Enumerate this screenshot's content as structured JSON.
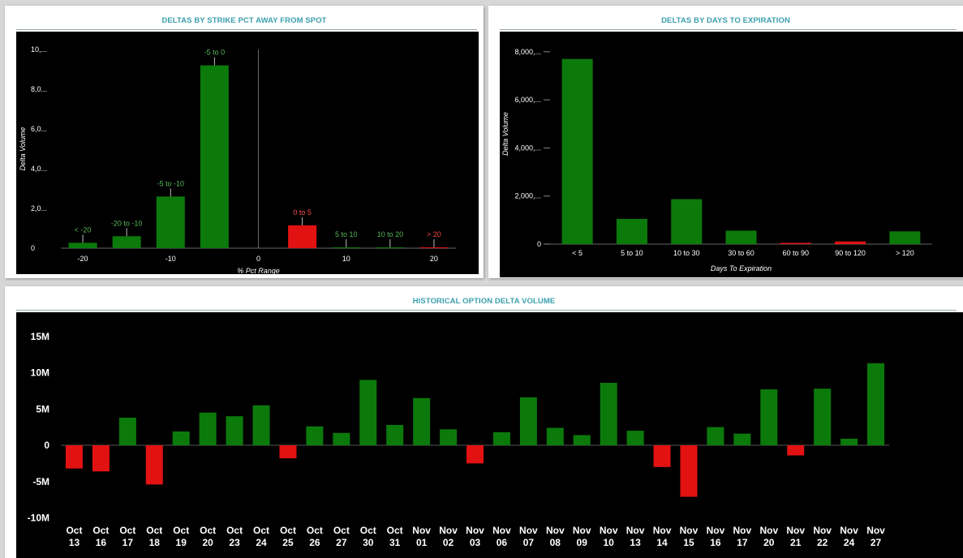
{
  "panels": {
    "strike": {
      "title": "DELTAS BY STRIKE PCT AWAY FROM SPOT"
    },
    "days": {
      "title": "DELTAS BY DAYS TO EXPIRATION"
    },
    "history": {
      "title": "HISTORICAL OPTION DELTA VOLUME"
    }
  },
  "colors": {
    "positive": "#0b7a0b",
    "negative": "#e31212",
    "positive_label": "#59b859",
    "negative_label": "#ff4a4a",
    "title": "#3aa0ad",
    "plot_bg": "#000000"
  },
  "chart_data": [
    {
      "id": "strike",
      "type": "bar",
      "title": "DELTAS BY STRIKE PCT AWAY FROM SPOT",
      "xlabel": "% Pct Range",
      "ylabel": "Delta Volume",
      "xlim": [
        -22.5,
        22.5
      ],
      "ylim": [
        0,
        10000
      ],
      "x_ticks": [
        "-20",
        "-10",
        "0",
        "10",
        "20"
      ],
      "x_tick_values": [
        -20,
        -10,
        0,
        10,
        20
      ],
      "y_ticks": [
        "0",
        "2,0...",
        "4,0...",
        "6,0...",
        "8,0...",
        "10,..."
      ],
      "y_tick_values": [
        0,
        2000,
        4000,
        6000,
        8000,
        10000
      ],
      "bars": [
        {
          "label": "< -20",
          "x": -20,
          "value": 270
        },
        {
          "label": "-20 to -10",
          "x": -15,
          "value": 600
        },
        {
          "label": "-5 to -10",
          "x": -10,
          "value": 2600
        },
        {
          "label": "-5 to 0",
          "x": -5,
          "value": 9200
        },
        {
          "label": "0 to 5",
          "x": 5,
          "value": 1150,
          "negative": true
        },
        {
          "label": "5 to 10",
          "x": 10,
          "value": 30
        },
        {
          "label": "10 to 20",
          "x": 15,
          "value": 30
        },
        {
          "label": "> 20",
          "x": 20,
          "value": 20,
          "negative": true
        }
      ],
      "grid": false
    },
    {
      "id": "days",
      "type": "bar",
      "title": "DELTAS BY DAYS TO EXPIRATION",
      "xlabel": "Days To Expiration",
      "ylabel": "Delta Volume",
      "ylim": [
        0,
        8500
      ],
      "y_ticks": [
        "0",
        "2,000,...",
        "4,000,...",
        "6,000,...",
        "8,000,..."
      ],
      "y_tick_values": [
        0,
        2000,
        4000,
        6000,
        8000
      ],
      "categories": [
        "< 5",
        "5 to 10",
        "10 to 30",
        "30 to 60",
        "60 to 90",
        "90 to 120",
        "> 120"
      ],
      "values": [
        7700,
        1050,
        1870,
        560,
        40,
        110,
        530
      ],
      "negative": [
        false,
        false,
        false,
        false,
        true,
        true,
        false
      ],
      "grid": false
    },
    {
      "id": "history",
      "type": "bar",
      "title": "HISTORICAL OPTION DELTA VOLUME",
      "ylim": [
        -10,
        17
      ],
      "y_ticks": [
        "-10M",
        "-5M",
        "0",
        "5M",
        "10M",
        "15M"
      ],
      "y_tick_values": [
        -10,
        -5,
        0,
        5,
        10,
        15
      ],
      "unit": "M",
      "categories": [
        [
          "Oct",
          "13"
        ],
        [
          "Oct",
          "16"
        ],
        [
          "Oct",
          "17"
        ],
        [
          "Oct",
          "18"
        ],
        [
          "Oct",
          "19"
        ],
        [
          "Oct",
          "20"
        ],
        [
          "Oct",
          "23"
        ],
        [
          "Oct",
          "24"
        ],
        [
          "Oct",
          "25"
        ],
        [
          "Oct",
          "26"
        ],
        [
          "Oct",
          "27"
        ],
        [
          "Oct",
          "30"
        ],
        [
          "Oct",
          "31"
        ],
        [
          "Nov",
          "01"
        ],
        [
          "Nov",
          "02"
        ],
        [
          "Nov",
          "03"
        ],
        [
          "Nov",
          "06"
        ],
        [
          "Nov",
          "07"
        ],
        [
          "Nov",
          "08"
        ],
        [
          "Nov",
          "09"
        ],
        [
          "Nov",
          "10"
        ],
        [
          "Nov",
          "13"
        ],
        [
          "Nov",
          "14"
        ],
        [
          "Nov",
          "15"
        ],
        [
          "Nov",
          "16"
        ],
        [
          "Nov",
          "17"
        ],
        [
          "Nov",
          "20"
        ],
        [
          "Nov",
          "21"
        ],
        [
          "Nov",
          "22"
        ],
        [
          "Nov",
          "24"
        ],
        [
          "Nov",
          "27"
        ]
      ],
      "values": [
        -3.2,
        -3.6,
        3.8,
        -5.4,
        1.9,
        4.5,
        4.0,
        5.5,
        -1.8,
        2.6,
        1.7,
        9.0,
        2.8,
        6.5,
        2.2,
        -2.5,
        1.8,
        6.6,
        2.4,
        1.4,
        8.6,
        2.0,
        -3.0,
        -7.1,
        2.5,
        1.6,
        7.7,
        -1.4,
        7.8,
        0.9,
        11.3
      ],
      "grid": false
    }
  ]
}
